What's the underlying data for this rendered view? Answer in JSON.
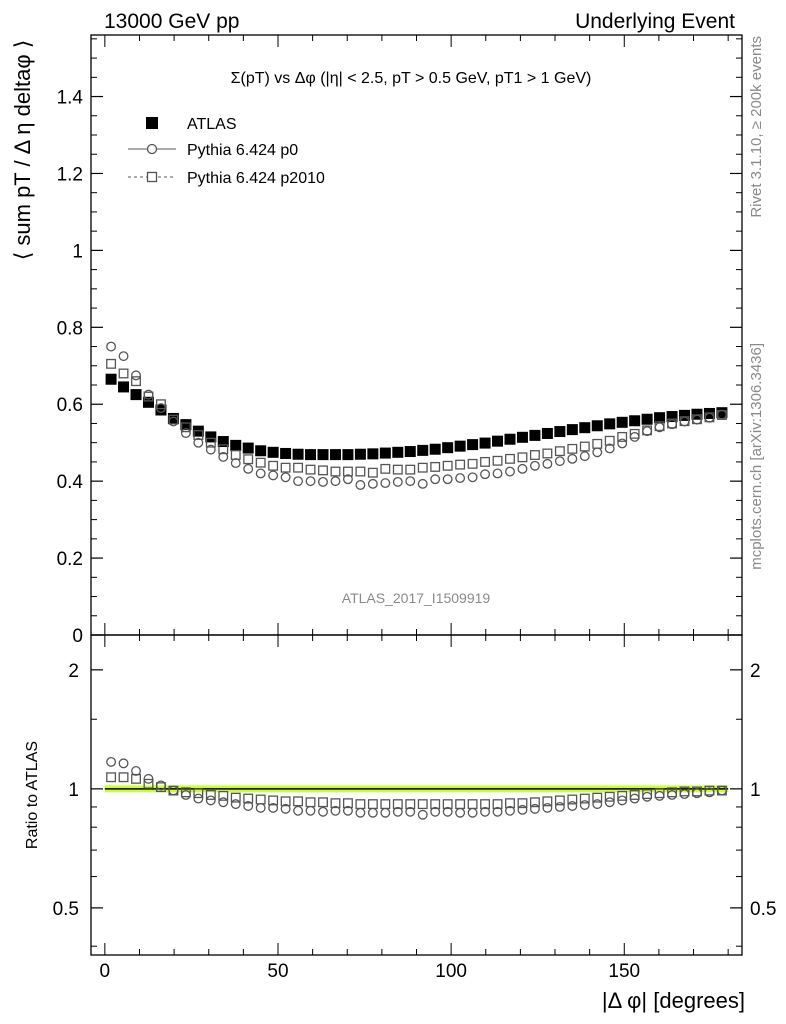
{
  "header": {
    "left": "13000 GeV pp",
    "right": "Underlying Event"
  },
  "side_labels": {
    "top": "Rivet 3.1.10, ≥ 200k events",
    "bottom": "mcplots.cern.ch [arXiv:1306.3436]"
  },
  "chart_data": [
    {
      "type": "scatter",
      "title": "Σ(pT) vs Δφ (|η| < 2.5, pT > 0.5 GeV, pT1 > 1 GeV)",
      "watermark": "ATLAS_2017_I1509919",
      "ylabel": "⟨ sum pT / Δ η deltaφ ⟩",
      "xlim": [
        -4,
        184
      ],
      "ylim": [
        0,
        1.56
      ],
      "yticks": [
        "0",
        "0.2",
        "0.4",
        "0.6",
        "0.8",
        "1",
        "1.2",
        "1.4"
      ],
      "legend_position": "top-left",
      "x": [
        1.8,
        5.4,
        9.0,
        12.6,
        16.2,
        19.8,
        23.4,
        27.0,
        30.6,
        34.2,
        37.8,
        41.4,
        45.0,
        48.6,
        52.2,
        55.8,
        59.4,
        63.0,
        66.6,
        70.2,
        73.8,
        77.4,
        81.0,
        84.6,
        88.2,
        91.8,
        95.4,
        99.0,
        102.6,
        106.2,
        109.8,
        113.4,
        117.0,
        120.6,
        124.2,
        127.8,
        131.4,
        135.0,
        138.6,
        142.2,
        145.8,
        149.4,
        153.0,
        156.6,
        160.2,
        163.8,
        167.4,
        171.0,
        174.6,
        178.2
      ],
      "series": [
        {
          "name": "ATLAS",
          "marker": "filled-square",
          "values": [
            0.665,
            0.645,
            0.625,
            0.605,
            0.585,
            0.563,
            0.547,
            0.53,
            0.515,
            0.503,
            0.493,
            0.486,
            0.479,
            0.475,
            0.472,
            0.47,
            0.469,
            0.469,
            0.469,
            0.469,
            0.47,
            0.471,
            0.473,
            0.475,
            0.477,
            0.48,
            0.483,
            0.487,
            0.491,
            0.495,
            0.499,
            0.504,
            0.509,
            0.514,
            0.519,
            0.524,
            0.529,
            0.534,
            0.539,
            0.544,
            0.549,
            0.553,
            0.557,
            0.561,
            0.565,
            0.568,
            0.571,
            0.574,
            0.576,
            0.578
          ]
        },
        {
          "name": "Pythia 6.424 p0",
          "marker": "open-circle",
          "line": "solid",
          "values": [
            0.75,
            0.725,
            0.675,
            0.625,
            0.59,
            0.555,
            0.525,
            0.5,
            0.482,
            0.463,
            0.447,
            0.432,
            0.42,
            0.415,
            0.41,
            0.4,
            0.4,
            0.398,
            0.4,
            0.405,
            0.39,
            0.393,
            0.395,
            0.398,
            0.4,
            0.393,
            0.405,
            0.405,
            0.408,
            0.41,
            0.418,
            0.42,
            0.425,
            0.432,
            0.44,
            0.445,
            0.452,
            0.458,
            0.465,
            0.475,
            0.485,
            0.498,
            0.515,
            0.53,
            0.54,
            0.548,
            0.555,
            0.56,
            0.565,
            0.573
          ]
        },
        {
          "name": "Pythia 6.424 p2010",
          "marker": "open-square",
          "line": "dashed",
          "values": [
            0.705,
            0.68,
            0.66,
            0.62,
            0.6,
            0.56,
            0.54,
            0.52,
            0.5,
            0.483,
            0.468,
            0.457,
            0.448,
            0.44,
            0.435,
            0.435,
            0.43,
            0.428,
            0.425,
            0.425,
            0.425,
            0.422,
            0.432,
            0.43,
            0.43,
            0.435,
            0.437,
            0.44,
            0.443,
            0.445,
            0.45,
            0.453,
            0.458,
            0.462,
            0.468,
            0.472,
            0.478,
            0.484,
            0.49,
            0.497,
            0.505,
            0.515,
            0.523,
            0.532,
            0.543,
            0.55,
            0.556,
            0.561,
            0.566,
            0.572
          ]
        }
      ]
    },
    {
      "type": "scatter",
      "ylabel": "Ratio to ATLAS",
      "xlabel": "|Δ φ| [degrees]",
      "xlim": [
        -4,
        184
      ],
      "ylim": [
        0.38,
        2.45
      ],
      "yscale": "log",
      "yticks": [
        "0.5",
        "1",
        "2"
      ],
      "xticks": [
        "0",
        "50",
        "100",
        "150"
      ],
      "reference_band": {
        "color": "#ccff33",
        "line": "#000000",
        "value": 1.0
      },
      "series": [
        {
          "name": "Pythia 6.424 p0",
          "marker": "open-circle",
          "values": [
            1.17,
            1.16,
            1.11,
            1.06,
            1.02,
            0.99,
            0.965,
            0.945,
            0.935,
            0.925,
            0.915,
            0.905,
            0.895,
            0.895,
            0.89,
            0.88,
            0.88,
            0.875,
            0.88,
            0.88,
            0.87,
            0.87,
            0.87,
            0.875,
            0.875,
            0.86,
            0.875,
            0.875,
            0.87,
            0.87,
            0.875,
            0.875,
            0.88,
            0.885,
            0.89,
            0.895,
            0.9,
            0.905,
            0.91,
            0.915,
            0.925,
            0.935,
            0.945,
            0.955,
            0.96,
            0.965,
            0.97,
            0.975,
            0.98,
            0.99
          ]
        },
        {
          "name": "Pythia 6.424 p2010",
          "marker": "open-square",
          "values": [
            1.07,
            1.07,
            1.06,
            1.03,
            1.01,
            0.99,
            0.98,
            0.975,
            0.965,
            0.96,
            0.95,
            0.945,
            0.94,
            0.935,
            0.93,
            0.93,
            0.925,
            0.925,
            0.92,
            0.92,
            0.915,
            0.915,
            0.915,
            0.915,
            0.915,
            0.915,
            0.915,
            0.915,
            0.915,
            0.915,
            0.915,
            0.915,
            0.92,
            0.92,
            0.925,
            0.93,
            0.935,
            0.94,
            0.945,
            0.95,
            0.955,
            0.96,
            0.965,
            0.97,
            0.975,
            0.98,
            0.985,
            0.985,
            0.99,
            0.99
          ]
        }
      ]
    }
  ]
}
